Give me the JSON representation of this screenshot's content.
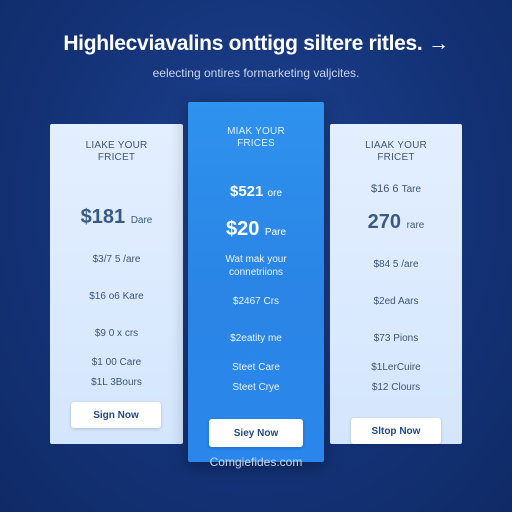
{
  "header": {
    "headline": "Highlecviavalins onttigg siltere ritles. →",
    "subheadline": "eelecting ontires formarketing valjcites."
  },
  "plans": [
    {
      "title": "LIAKE YOUR FRICET",
      "price_primary": "$181",
      "price_primary_unit": "Dare",
      "features": [
        "$3/7 5 /are",
        "$16 o6 Kare",
        "$9 0 x crs",
        "$1 00 Care",
        "$1L 3Bours"
      ],
      "button_label": "Sign Now"
    },
    {
      "title": "MIAK YOUR FRICES",
      "price_secondary": "$521",
      "price_secondary_unit": "ore",
      "price_primary": "$20",
      "price_primary_unit": "Pare",
      "highlight": "Wat mak your connetriions",
      "features": [
        "$2467 Crs",
        "$2eatity me",
        "Steet Care",
        "Steet Crye"
      ],
      "button_label": "Siey Now"
    },
    {
      "title": "LIAAK YOUR FRICET",
      "price_secondary": "$16 6",
      "price_secondary_unit": "Tare",
      "price_primary": "270",
      "price_primary_unit": "rare",
      "features": [
        "$84 5 /are",
        "$2ed Aars",
        "$73 Pions",
        "$1LerCuire",
        "$12 Clours"
      ],
      "button_label": "Sltop Now"
    }
  ],
  "footer": {
    "text": "Comgiefides.com"
  }
}
